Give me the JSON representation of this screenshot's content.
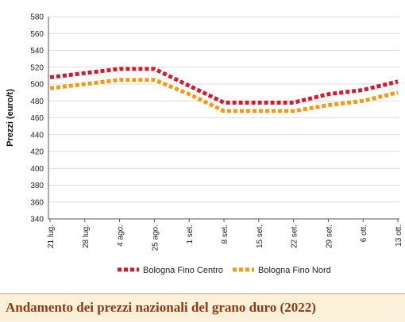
{
  "caption": "Andamento dei prezzi nazionali del grano duro (2022)",
  "chart_data": {
    "type": "line",
    "title": "Andamento dei prezzi nazionali del grano duro (2022)",
    "xlabel": "",
    "ylabel": "Prezzi (euro/t)",
    "categories": [
      "21 lug.",
      "28 lug.",
      "4 ago.",
      "25 ago.",
      "1 set.",
      "8 set.",
      "15 set.",
      "22 set.",
      "29 set.",
      "6 ott.",
      "13 ott."
    ],
    "ylim": [
      340,
      580
    ],
    "yticks": [
      340,
      360,
      380,
      400,
      420,
      440,
      460,
      480,
      500,
      520,
      540,
      560,
      580
    ],
    "grid": true,
    "legend_position": "bottom",
    "series": [
      {
        "name": "Bologna Fino Centro",
        "color": "#d7192d",
        "values": [
          508,
          513,
          518,
          518,
          498,
          478,
          478,
          478,
          488,
          493,
          503
        ]
      },
      {
        "name": "Bologna Fino Nord",
        "color": "#f29a14",
        "values": [
          495,
          500,
          505,
          505,
          488,
          468,
          468,
          468,
          475,
          480,
          490
        ]
      }
    ]
  }
}
